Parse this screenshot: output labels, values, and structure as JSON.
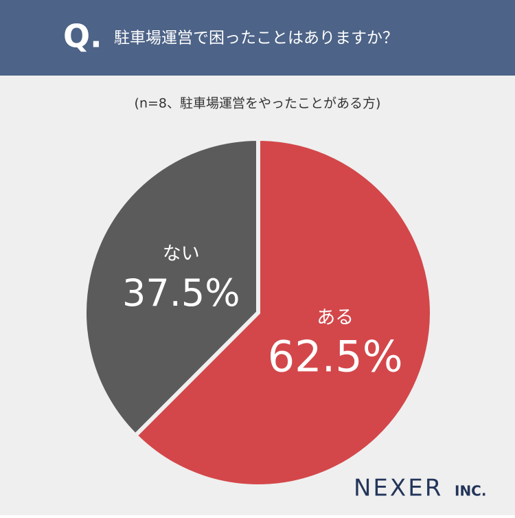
{
  "chart_data": {
    "type": "pie",
    "question_mark": "Q.",
    "title": "駐車場運営で困ったことはありますか？",
    "subtitle": "(n=8、駐車場運営をやったことがある方)",
    "categories": [
      "ある",
      "ない"
    ],
    "values": [
      62.5,
      37.5
    ],
    "value_labels": [
      "62.5%",
      "37.5%"
    ],
    "colors": [
      "#d3474a",
      "#5b5b5b"
    ],
    "brand": "NEXER",
    "brand_suffix": "INC."
  }
}
